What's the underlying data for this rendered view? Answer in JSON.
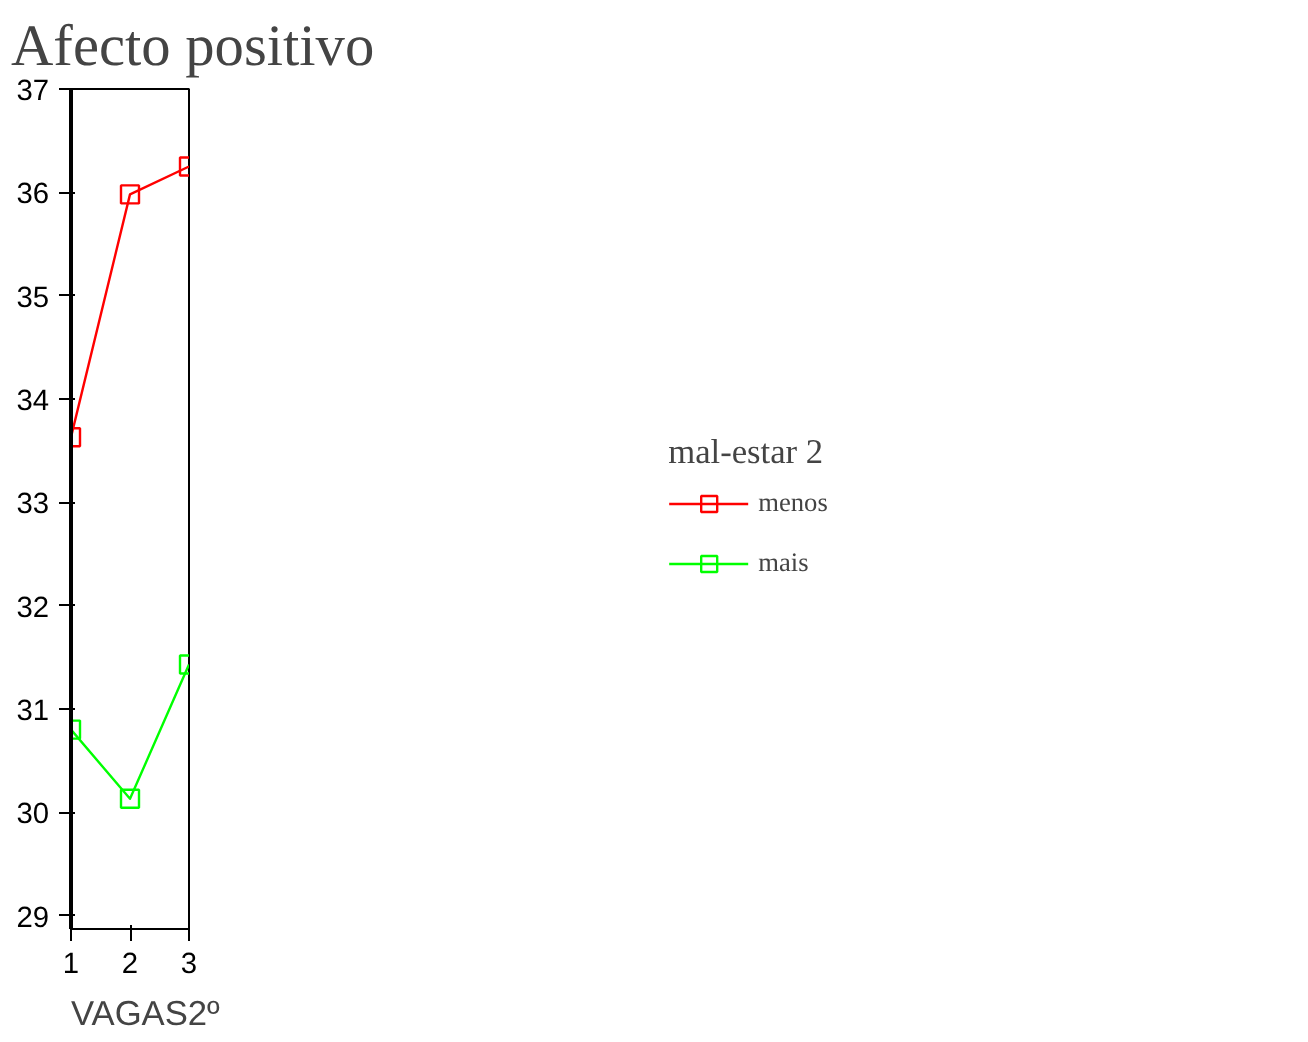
{
  "chart_data": {
    "type": "line",
    "title": "Afecto positivo",
    "xlabel": "VAGAS2º",
    "legend_title": "mal-estar 2",
    "x": [
      1,
      2,
      3
    ],
    "series": [
      {
        "name": "menos",
        "color": "#ff0000",
        "values": [
          33.63,
          35.98,
          36.25
        ]
      },
      {
        "name": "mais",
        "color": "#00ff00",
        "values": [
          30.8,
          30.13,
          31.43
        ]
      }
    ],
    "xlim": [
      1,
      3
    ],
    "xticks": [
      1,
      2,
      3
    ],
    "ylim": [
      28.87,
      37
    ],
    "yticks": [
      29,
      30,
      31,
      32,
      33,
      34,
      35,
      36,
      37
    ],
    "grid": false,
    "legend": "right",
    "marker": "square",
    "line_style": "solid"
  }
}
